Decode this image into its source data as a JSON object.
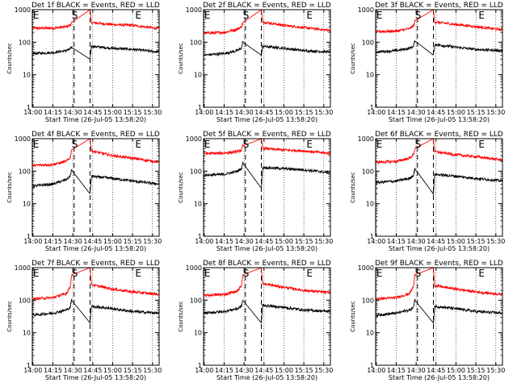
{
  "figure": {
    "background": "#ffffff",
    "ink": "#000000",
    "lld_color": "#ff0000",
    "events_color": "#000000"
  },
  "chart_data": [
    {
      "type": "line",
      "title": "Det 1f BLACK = Events, RED = LLD",
      "xlabel": "Start Time (26-Jul-05 13:58:20)",
      "ylabel": "Counts/sec",
      "yscale": "log",
      "ylim": [
        1,
        1000
      ],
      "x_ticks": [
        "14:00",
        "14:15",
        "14:30",
        "14:45",
        "15:00",
        "15:15",
        "15:30"
      ],
      "y_ticks": [
        "1",
        "10",
        "100",
        "1000"
      ],
      "grid": "dotted vertical at x ticks",
      "attenuator_flags": [
        {
          "label": "E",
          "time": "14:00"
        },
        {
          "label": "S",
          "time": "14:31"
        },
        {
          "label": "E",
          "time": "15:17"
        }
      ],
      "dashed_lines": [
        "14:31",
        "14:43"
      ],
      "series": [
        {
          "name": "LLD",
          "color": "#ff0000",
          "x": [
            "14:00",
            "14:15",
            "14:25",
            "14:28",
            "14:29",
            "14:43",
            "14:44",
            "15:00",
            "15:15",
            "15:35"
          ],
          "y": [
            270,
            270,
            300,
            330,
            400,
            1000,
            400,
            350,
            330,
            260
          ]
        },
        {
          "name": "Events",
          "color": "#000000",
          "x": [
            "14:00",
            "14:15",
            "14:25",
            "14:28",
            "14:29",
            "14:43",
            "14:44",
            "15:00",
            "15:15",
            "15:35"
          ],
          "y": [
            45,
            48,
            55,
            60,
            70,
            30,
            75,
            65,
            60,
            50
          ]
        }
      ]
    },
    {
      "type": "line",
      "title": "Det 2f BLACK = Events, RED = LLD",
      "xlabel": "Start Time (26-Jul-05 13:58:20)",
      "ylabel": "Counts/sec",
      "yscale": "log",
      "ylim": [
        1,
        1000
      ],
      "x_ticks": [
        "14:00",
        "14:15",
        "14:30",
        "14:45",
        "15:00",
        "15:15",
        "15:30"
      ],
      "y_ticks": [
        "1",
        "10",
        "100",
        "1000"
      ],
      "grid": "dotted vertical at x ticks",
      "attenuator_flags": [
        {
          "label": "E",
          "time": "14:00"
        },
        {
          "label": "S",
          "time": "14:31"
        },
        {
          "label": "E",
          "time": "15:17"
        }
      ],
      "dashed_lines": [
        "14:31",
        "14:43"
      ],
      "series": [
        {
          "name": "LLD",
          "color": "#ff0000",
          "x": [
            "14:00",
            "14:15",
            "14:25",
            "14:28",
            "14:29",
            "14:43",
            "14:44",
            "15:00",
            "15:15",
            "15:35"
          ],
          "y": [
            190,
            200,
            250,
            300,
            400,
            1000,
            420,
            330,
            280,
            230
          ]
        },
        {
          "name": "Events",
          "color": "#000000",
          "x": [
            "14:00",
            "14:15",
            "14:25",
            "14:28",
            "14:29",
            "14:43",
            "14:44",
            "15:00",
            "15:15",
            "15:35"
          ],
          "y": [
            40,
            45,
            55,
            65,
            100,
            40,
            75,
            65,
            55,
            50
          ]
        }
      ]
    },
    {
      "type": "line",
      "title": "Det 3f BLACK = Events, RED = LLD",
      "xlabel": "Start Time (26-Jul-05 13:58:20)",
      "ylabel": "Counts/sec",
      "yscale": "log",
      "ylim": [
        1,
        1000
      ],
      "x_ticks": [
        "14:00",
        "14:15",
        "14:30",
        "14:45",
        "15:00",
        "15:15",
        "15:30"
      ],
      "y_ticks": [
        "1",
        "10",
        "100",
        "1000"
      ],
      "grid": "dotted vertical at x ticks",
      "attenuator_flags": [
        {
          "label": "E",
          "time": "14:00"
        },
        {
          "label": "S",
          "time": "14:31"
        },
        {
          "label": "E",
          "time": "15:17"
        }
      ],
      "dashed_lines": [
        "14:31",
        "14:43"
      ],
      "series": [
        {
          "name": "LLD",
          "color": "#ff0000",
          "x": [
            "14:00",
            "14:15",
            "14:25",
            "14:28",
            "14:29",
            "14:43",
            "14:44",
            "15:00",
            "15:15",
            "15:35"
          ],
          "y": [
            210,
            220,
            260,
            320,
            450,
            1000,
            420,
            350,
            300,
            240
          ]
        },
        {
          "name": "Events",
          "color": "#000000",
          "x": [
            "14:00",
            "14:15",
            "14:25",
            "14:28",
            "14:29",
            "14:43",
            "14:44",
            "15:00",
            "15:15",
            "15:35"
          ],
          "y": [
            50,
            55,
            65,
            75,
            110,
            40,
            85,
            70,
            60,
            55
          ]
        }
      ]
    },
    {
      "type": "line",
      "title": "Det 4f BLACK = Events, RED = LLD",
      "xlabel": "Start Time (26-Jul-05 13:58:20)",
      "ylabel": "Counts/sec",
      "yscale": "log",
      "ylim": [
        1,
        1000
      ],
      "x_ticks": [
        "14:00",
        "14:15",
        "14:30",
        "14:45",
        "15:00",
        "15:15",
        "15:30"
      ],
      "y_ticks": [
        "1",
        "10",
        "100",
        "1000"
      ],
      "grid": "dotted vertical at x ticks",
      "attenuator_flags": [
        {
          "label": "E",
          "time": "14:00"
        },
        {
          "label": "S",
          "time": "14:31"
        },
        {
          "label": "E",
          "time": "15:17"
        }
      ],
      "dashed_lines": [
        "14:31",
        "14:43"
      ],
      "series": [
        {
          "name": "LLD",
          "color": "#ff0000",
          "x": [
            "14:00",
            "14:15",
            "14:25",
            "14:28",
            "14:29",
            "14:43",
            "14:44",
            "15:00",
            "15:15",
            "15:35"
          ],
          "y": [
            150,
            160,
            200,
            260,
            450,
            1000,
            420,
            300,
            250,
            190
          ]
        },
        {
          "name": "Events",
          "color": "#000000",
          "x": [
            "14:00",
            "14:15",
            "14:25",
            "14:28",
            "14:29",
            "14:43",
            "14:44",
            "15:00",
            "15:15",
            "15:35"
          ],
          "y": [
            35,
            40,
            55,
            70,
            110,
            20,
            70,
            60,
            50,
            40
          ]
        }
      ]
    },
    {
      "type": "line",
      "title": "Det 5f BLACK = Events, RED = LLD",
      "xlabel": "Start Time (26-Jul-05 13:58:20)",
      "ylabel": "Counts/sec",
      "yscale": "log",
      "ylim": [
        1,
        1000
      ],
      "x_ticks": [
        "14:00",
        "14:15",
        "14:30",
        "14:45",
        "15:00",
        "15:15",
        "15:30"
      ],
      "y_ticks": [
        "1",
        "10",
        "100",
        "1000"
      ],
      "grid": "dotted vertical at x ticks",
      "attenuator_flags": [
        {
          "label": "E",
          "time": "14:00"
        },
        {
          "label": "S",
          "time": "14:31"
        },
        {
          "label": "E",
          "time": "15:17"
        }
      ],
      "dashed_lines": [
        "14:31",
        "14:43"
      ],
      "series": [
        {
          "name": "LLD",
          "color": "#ff0000",
          "x": [
            "14:00",
            "14:15",
            "14:25",
            "14:28",
            "14:29",
            "14:43",
            "14:44",
            "15:00",
            "15:15",
            "15:35"
          ],
          "y": [
            350,
            360,
            400,
            450,
            600,
            1000,
            500,
            450,
            420,
            350
          ]
        },
        {
          "name": "Events",
          "color": "#000000",
          "x": [
            "14:00",
            "14:15",
            "14:25",
            "14:28",
            "14:29",
            "14:43",
            "14:44",
            "15:00",
            "15:15",
            "15:35"
          ],
          "y": [
            75,
            80,
            100,
            120,
            180,
            30,
            130,
            120,
            110,
            90
          ]
        }
      ]
    },
    {
      "type": "line",
      "title": "Det 6f BLACK = Events, RED = LLD",
      "xlabel": "Start Time (26-Jul-05 13:58:20)",
      "ylabel": "Counts/sec",
      "yscale": "log",
      "ylim": [
        1,
        1000
      ],
      "x_ticks": [
        "14:00",
        "14:15",
        "14:30",
        "14:45",
        "15:00",
        "15:15",
        "15:30"
      ],
      "y_ticks": [
        "1",
        "10",
        "100",
        "1000"
      ],
      "grid": "dotted vertical at x ticks",
      "attenuator_flags": [
        {
          "label": "E",
          "time": "14:00"
        },
        {
          "label": "S",
          "time": "14:31"
        },
        {
          "label": "E",
          "time": "15:17"
        }
      ],
      "dashed_lines": [
        "14:31",
        "14:43"
      ],
      "series": [
        {
          "name": "LLD",
          "color": "#ff0000",
          "x": [
            "14:00",
            "14:15",
            "14:25",
            "14:28",
            "14:29",
            "14:43",
            "14:44",
            "15:00",
            "15:15",
            "15:35"
          ],
          "y": [
            190,
            200,
            250,
            320,
            500,
            1000,
            400,
            320,
            280,
            220
          ]
        },
        {
          "name": "Events",
          "color": "#000000",
          "x": [
            "14:00",
            "14:15",
            "14:25",
            "14:28",
            "14:29",
            "14:43",
            "14:44",
            "15:00",
            "15:15",
            "15:35"
          ],
          "y": [
            45,
            50,
            60,
            75,
            120,
            20,
            80,
            70,
            60,
            50
          ]
        }
      ]
    },
    {
      "type": "line",
      "title": "Det 7f BLACK = Events, RED = LLD",
      "xlabel": "Start Time (26-Jul-05 13:58:20)",
      "ylabel": "Counts/sec",
      "yscale": "log",
      "ylim": [
        1,
        1000
      ],
      "x_ticks": [
        "14:00",
        "14:15",
        "14:30",
        "14:45",
        "15:00",
        "15:15",
        "15:30"
      ],
      "y_ticks": [
        "1",
        "10",
        "100",
        "1000"
      ],
      "grid": "dotted vertical at x ticks",
      "attenuator_flags": [
        {
          "label": "E",
          "time": "14:00"
        },
        {
          "label": "S",
          "time": "14:31"
        },
        {
          "label": "E",
          "time": "15:17"
        }
      ],
      "dashed_lines": [
        "14:31",
        "14:43"
      ],
      "series": [
        {
          "name": "LLD",
          "color": "#ff0000",
          "x": [
            "14:00",
            "14:15",
            "14:25",
            "14:28",
            "14:29",
            "14:43",
            "14:44",
            "15:00",
            "15:15",
            "15:35"
          ],
          "y": [
            110,
            120,
            160,
            250,
            600,
            1000,
            300,
            220,
            180,
            150
          ]
        },
        {
          "name": "Events",
          "color": "#000000",
          "x": [
            "14:00",
            "14:15",
            "14:25",
            "14:28",
            "14:29",
            "14:43",
            "14:44",
            "15:00",
            "15:15",
            "15:35"
          ],
          "y": [
            35,
            40,
            50,
            60,
            100,
            20,
            65,
            55,
            45,
            40
          ]
        }
      ]
    },
    {
      "type": "line",
      "title": "Det 8f BLACK = Events, RED = LLD",
      "xlabel": "Start Time (26-Jul-05 13:58:20)",
      "ylabel": "Counts/sec",
      "yscale": "log",
      "ylim": [
        1,
        1000
      ],
      "x_ticks": [
        "14:00",
        "14:15",
        "14:30",
        "14:45",
        "15:00",
        "15:15",
        "15:30"
      ],
      "y_ticks": [
        "1",
        "10",
        "100",
        "1000"
      ],
      "grid": "dotted vertical at x ticks",
      "attenuator_flags": [
        {
          "label": "E",
          "time": "14:00"
        },
        {
          "label": "S",
          "time": "14:31"
        },
        {
          "label": "E",
          "time": "15:17"
        }
      ],
      "dashed_lines": [
        "14:31",
        "14:43"
      ],
      "series": [
        {
          "name": "LLD",
          "color": "#ff0000",
          "x": [
            "14:00",
            "14:15",
            "14:25",
            "14:28",
            "14:29",
            "14:43",
            "14:44",
            "15:00",
            "15:15",
            "15:35"
          ],
          "y": [
            140,
            150,
            190,
            280,
            600,
            1000,
            320,
            250,
            200,
            170
          ]
        },
        {
          "name": "Events",
          "color": "#000000",
          "x": [
            "14:00",
            "14:15",
            "14:25",
            "14:28",
            "14:29",
            "14:43",
            "14:44",
            "15:00",
            "15:15",
            "15:35"
          ],
          "y": [
            40,
            45,
            55,
            65,
            100,
            20,
            70,
            60,
            50,
            45
          ]
        }
      ]
    },
    {
      "type": "line",
      "title": "Det 9f BLACK = Events, RED = LLD",
      "xlabel": "Start Time (26-Jul-05 13:58:20)",
      "ylabel": "Counts/sec",
      "yscale": "log",
      "ylim": [
        1,
        1000
      ],
      "x_ticks": [
        "14:00",
        "14:15",
        "14:30",
        "14:45",
        "15:00",
        "15:15",
        "15:30"
      ],
      "y_ticks": [
        "1",
        "10",
        "100",
        "1000"
      ],
      "grid": "dotted vertical at x ticks",
      "attenuator_flags": [
        {
          "label": "E",
          "time": "14:00"
        },
        {
          "label": "S",
          "time": "14:31"
        },
        {
          "label": "E",
          "time": "15:17"
        }
      ],
      "dashed_lines": [
        "14:31",
        "14:43"
      ],
      "series": [
        {
          "name": "LLD",
          "color": "#ff0000",
          "x": [
            "14:00",
            "14:15",
            "14:25",
            "14:28",
            "14:29",
            "14:43",
            "14:44",
            "15:00",
            "15:15",
            "15:35"
          ],
          "y": [
            110,
            120,
            160,
            260,
            600,
            1000,
            280,
            220,
            180,
            150
          ]
        },
        {
          "name": "Events",
          "color": "#000000",
          "x": [
            "14:00",
            "14:15",
            "14:25",
            "14:28",
            "14:29",
            "14:43",
            "14:44",
            "15:00",
            "15:15",
            "15:35"
          ],
          "y": [
            35,
            40,
            50,
            60,
            100,
            20,
            65,
            55,
            45,
            40
          ]
        }
      ]
    }
  ]
}
